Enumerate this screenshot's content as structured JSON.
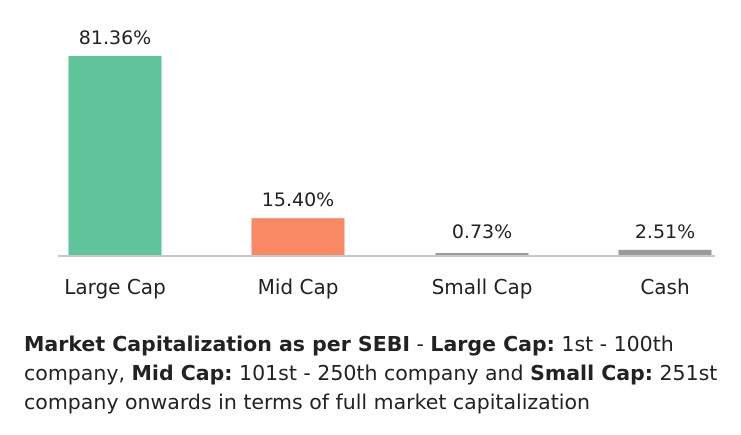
{
  "chart_data": {
    "type": "bar",
    "categories": [
      "Large Cap",
      "Mid Cap",
      "Small Cap",
      "Cash"
    ],
    "values": [
      81.36,
      15.4,
      0.73,
      2.51
    ],
    "value_labels": [
      "81.36%",
      "15.40%",
      "0.73%",
      "2.51%"
    ],
    "colors": [
      "#5fc49c",
      "#f98865",
      "#9a9a9a",
      "#9a9a9a"
    ],
    "baseline_color": "#c8c8c8",
    "ylim": [
      0,
      81.36
    ],
    "grid": false
  },
  "footnote": {
    "b1": "Market Capitalization as per SEBI",
    "t1": " - ",
    "b2": "Large Cap:",
    "t2": " 1st - 100th company, ",
    "b3": "Mid Cap:",
    "t3": " 101st - 250th company and ",
    "b4": "Small Cap:",
    "t4": " 251st company onwards in terms of full market capitalization"
  }
}
